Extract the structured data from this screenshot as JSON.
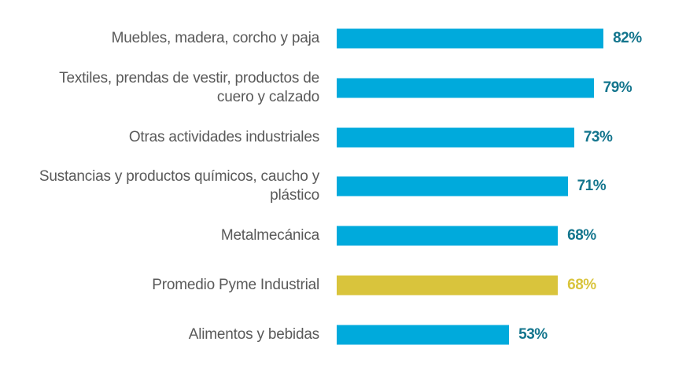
{
  "chart_data": {
    "type": "bar",
    "orientation": "horizontal",
    "title": "",
    "xlabel": "",
    "ylabel": "",
    "xlim": [
      0,
      100
    ],
    "grid": false,
    "categories": [
      "Muebles, madera, corcho y paja",
      "Textiles, prendas de vestir, productos de\ncuero y calzado",
      "Otras actividades industriales",
      "Sustancias y productos químicos, caucho y\nplástico",
      "Metalmecánica",
      "Promedio Pyme Industrial",
      "Alimentos y bebidas"
    ],
    "values": [
      82,
      79,
      73,
      71,
      68,
      68,
      53
    ],
    "value_labels": [
      "82%",
      "79%",
      "73%",
      "71%",
      "68%",
      "68%",
      "53%"
    ],
    "highlight_index": 5
  },
  "colors": {
    "bar": "#00AADC",
    "bar_highlight": "#D9C43C",
    "value_text": "#13758D",
    "value_text_highlight": "#D9C43C",
    "category_text": "#595959"
  }
}
